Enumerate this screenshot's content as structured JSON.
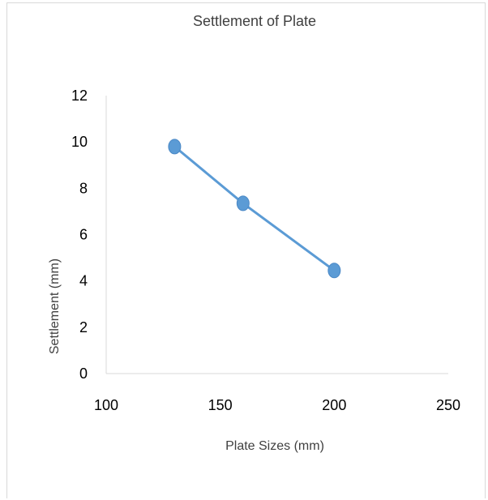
{
  "chart_data": {
    "type": "scatter",
    "title": "Settlement of Plate",
    "xlabel": "Plate Sizes (mm)",
    "ylabel": "Settlement (mm)",
    "xlim": [
      100,
      250
    ],
    "ylim": [
      0,
      12
    ],
    "x_ticks": [
      "100",
      "150",
      "200",
      "250"
    ],
    "y_ticks": [
      "0",
      "2",
      "4",
      "6",
      "8",
      "10",
      "12"
    ],
    "grid": false,
    "legend": "none",
    "series": [
      {
        "x": [
          130,
          160,
          200
        ],
        "y": [
          9.8,
          7.35,
          4.45
        ],
        "color": "#5B9BD5",
        "connected": true
      }
    ]
  }
}
